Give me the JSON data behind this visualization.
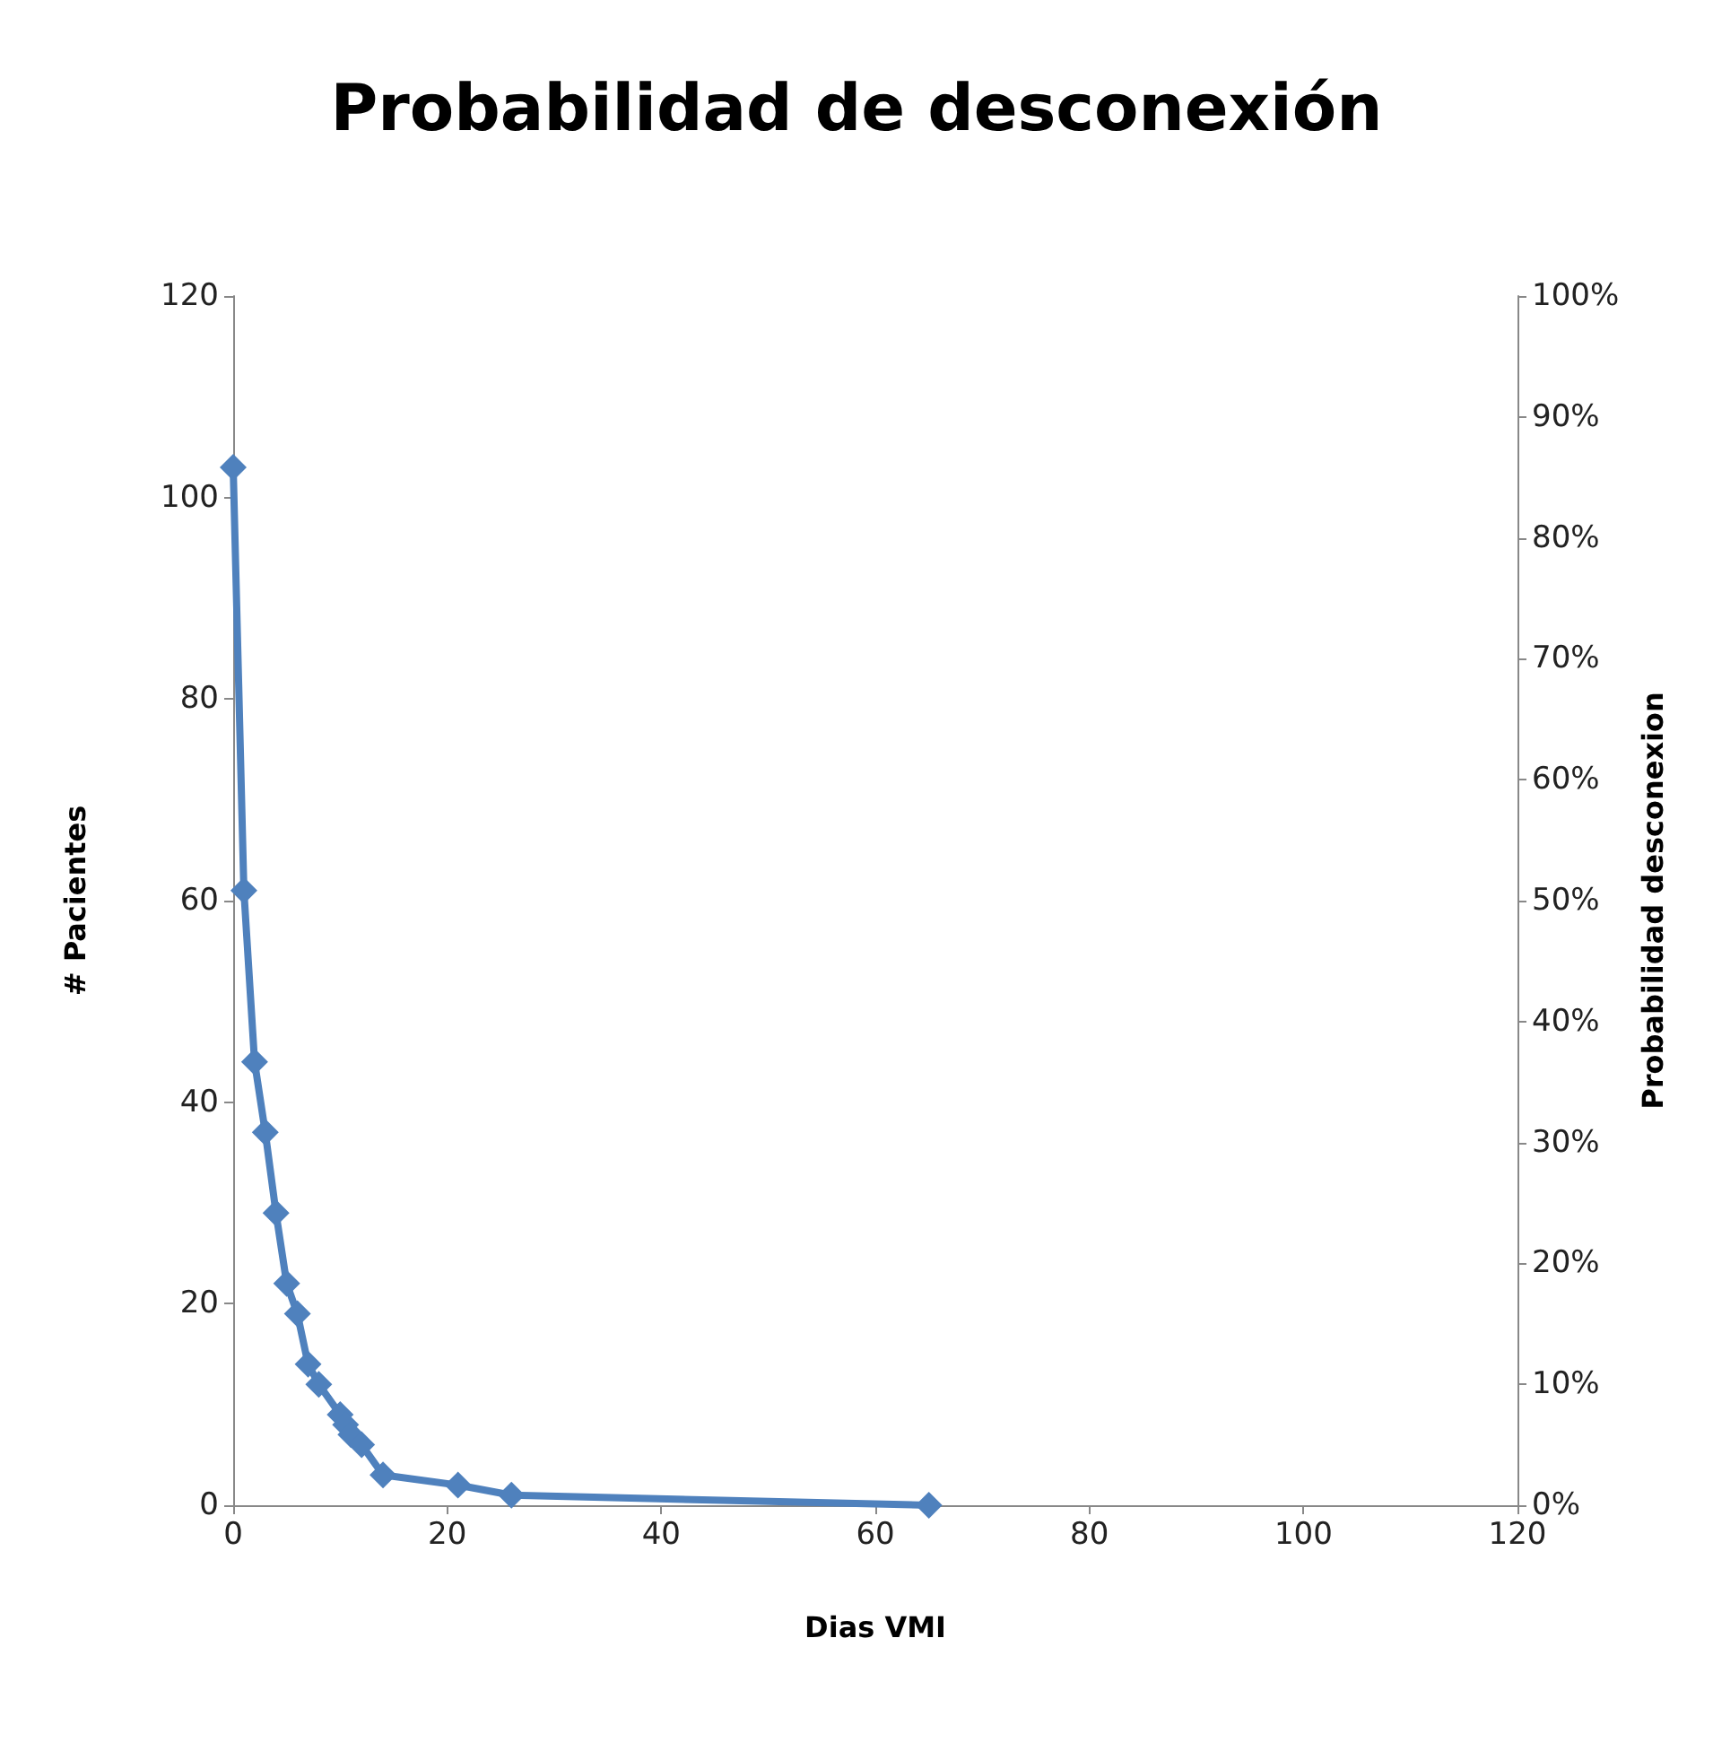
{
  "chart_data": {
    "type": "line",
    "title": "Probabilidad de desconexión",
    "xlabel": "Dias VMI",
    "ylabel": "# Pacientes",
    "y2label": "Probabilidad desconexion",
    "x": [
      0,
      1,
      2,
      3,
      4,
      5,
      6,
      7,
      8,
      10,
      10.5,
      11,
      12,
      14,
      21,
      26,
      65
    ],
    "series": [
      {
        "color": "#4f81bd",
        "values": [
          103,
          61,
          44,
          37,
          29,
          22,
          19,
          14,
          12,
          9,
          8,
          7,
          6,
          3,
          2,
          1,
          0
        ]
      }
    ],
    "xlim": [
      0,
      120
    ],
    "xticks": [
      0,
      20,
      40,
      60,
      80,
      100,
      120
    ],
    "ylim": [
      0,
      120
    ],
    "yticks": [
      0,
      20,
      40,
      60,
      80,
      100,
      120
    ],
    "y2lim": [
      0,
      100
    ],
    "y2ticks": [
      {
        "value": 0,
        "label": "0%"
      },
      {
        "value": 10,
        "label": "10%"
      },
      {
        "value": 20,
        "label": "20%"
      },
      {
        "value": 30,
        "label": "30%"
      },
      {
        "value": 40,
        "label": "40%"
      },
      {
        "value": 50,
        "label": "50%"
      },
      {
        "value": 60,
        "label": "60%"
      },
      {
        "value": 70,
        "label": "70%"
      },
      {
        "value": 80,
        "label": "80%"
      },
      {
        "value": 90,
        "label": "90%"
      },
      {
        "value": 100,
        "label": "100%"
      }
    ],
    "marker": "diamond",
    "line_style": "solid"
  }
}
